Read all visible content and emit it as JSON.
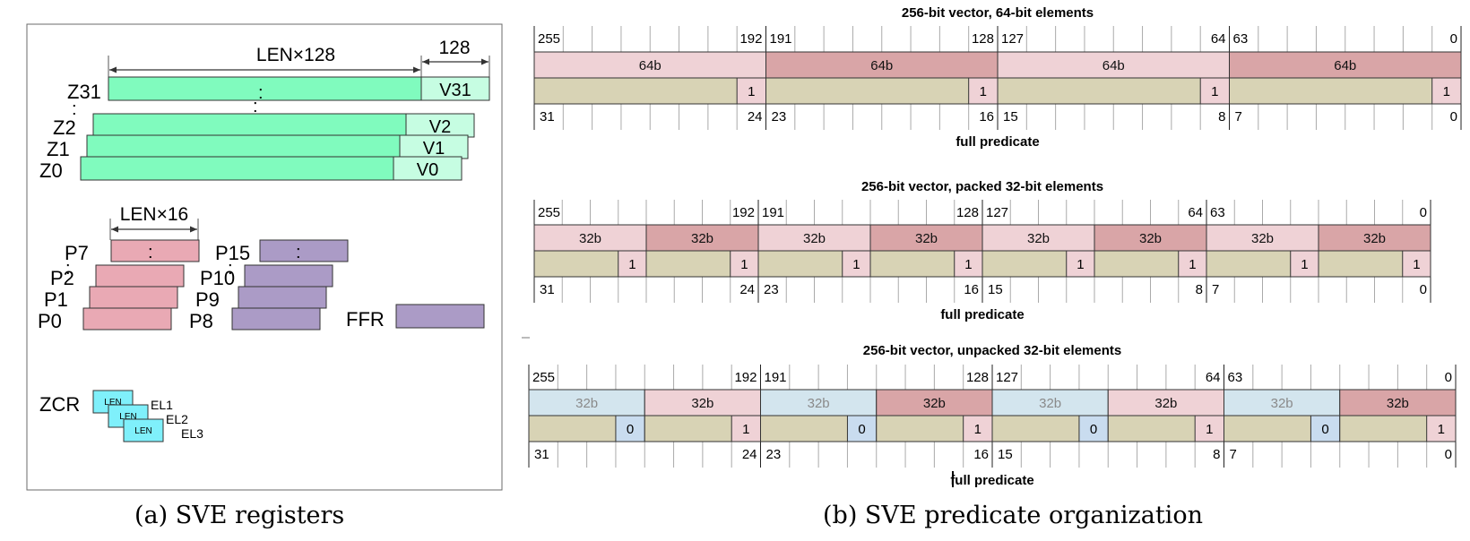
{
  "captions": {
    "a": "(a) SVE registers",
    "b": "(b) SVE predicate organization"
  },
  "registers": {
    "z_width_label": "LEN×128",
    "v_width_label": "128",
    "z_regs": [
      {
        "name": "Z31",
        "sub": "V31"
      },
      {
        "name": "Z2",
        "sub": "V2"
      },
      {
        "name": "Z1",
        "sub": "V1"
      },
      {
        "name": "Z0",
        "sub": "V0"
      }
    ],
    "p_width_label": "LEN×16",
    "p_left": [
      "P7",
      "P2",
      "P1",
      "P0"
    ],
    "p_right": [
      "P15",
      "P10",
      "P9",
      "P8"
    ],
    "ffr_label": "FFR",
    "zcr_label": "ZCR",
    "zcr_box_label": "LEN",
    "zcr_levels": [
      "EL1",
      "EL2",
      "EL3"
    ],
    "ellipsis": ":"
  },
  "panels": [
    {
      "title": "256-bit vector, 64-bit elements",
      "top_labels": [
        "255",
        "192",
        "191",
        "128",
        "127",
        "64",
        "63",
        "0"
      ],
      "elements": [
        {
          "label": "64b",
          "tone": "light"
        },
        {
          "label": "64b",
          "tone": "dark"
        },
        {
          "label": "64b",
          "tone": "light"
        },
        {
          "label": "64b",
          "tone": "dark"
        }
      ],
      "predicates": [
        "1",
        "1",
        "1",
        "1"
      ],
      "bottom_labels": [
        "31",
        "24",
        "23",
        "16",
        "15",
        "8",
        "7",
        "0"
      ],
      "footer": "full predicate"
    },
    {
      "title": "256-bit vector, packed 32-bit elements",
      "top_labels": [
        "255",
        "192",
        "191",
        "128",
        "127",
        "64",
        "63",
        "0"
      ],
      "elements": [
        {
          "label": "32b",
          "tone": "light"
        },
        {
          "label": "32b",
          "tone": "dark"
        },
        {
          "label": "32b",
          "tone": "light"
        },
        {
          "label": "32b",
          "tone": "dark"
        },
        {
          "label": "32b",
          "tone": "light"
        },
        {
          "label": "32b",
          "tone": "dark"
        },
        {
          "label": "32b",
          "tone": "light"
        },
        {
          "label": "32b",
          "tone": "dark"
        }
      ],
      "predicates": [
        "1",
        "1",
        "1",
        "1",
        "1",
        "1",
        "1",
        "1"
      ],
      "bottom_labels": [
        "31",
        "24",
        "23",
        "16",
        "15",
        "8",
        "7",
        "0"
      ],
      "footer": "full predicate"
    },
    {
      "title": "256-bit vector, unpacked 32-bit elements",
      "top_labels": [
        "255",
        "192",
        "191",
        "128",
        "127",
        "64",
        "63",
        "0"
      ],
      "elements": [
        {
          "label": "32b",
          "tone": "blue"
        },
        {
          "label": "32b",
          "tone": "light"
        },
        {
          "label": "32b",
          "tone": "blue"
        },
        {
          "label": "32b",
          "tone": "dark"
        },
        {
          "label": "32b",
          "tone": "blue"
        },
        {
          "label": "32b",
          "tone": "light"
        },
        {
          "label": "32b",
          "tone": "blue"
        },
        {
          "label": "32b",
          "tone": "dark"
        }
      ],
      "predicates": [
        "0",
        "1",
        "0",
        "1",
        "0",
        "1",
        "0",
        "1"
      ],
      "bottom_labels": [
        "31",
        "24",
        "23",
        "16",
        "15",
        "8",
        "7",
        "0"
      ],
      "footer": "full predicate"
    }
  ],
  "colors": {
    "z_green": "#80fbbe",
    "v_green": "#c6fde2",
    "p_pink": "#e9a9b4",
    "p_purple": "#ab9bc6",
    "zcr_cyan": "#7ff0fb",
    "elem_light": "#efd2d6",
    "elem_dark": "#d9a5a7",
    "elem_blue": "#d3e5ee",
    "pred_bg": "#d8d3b5",
    "pred_one": "#efd2d6",
    "pred_zero": "#c9dcef"
  }
}
